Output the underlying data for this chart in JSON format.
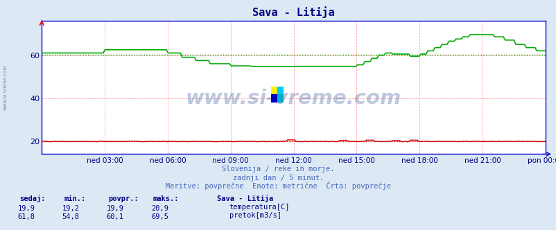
{
  "title": "Sava - Litija",
  "title_color": "#000080",
  "bg_color": "#dce9f5",
  "plot_bg_color": "#ffffff",
  "grid_color": "#ff9999",
  "watermark": "www.si-vreme.com",
  "watermark_color": "#1a3a8a",
  "left_label": "www.si-vreme.com",
  "tick_color": "#000080",
  "spine_color": "#0000cc",
  "xticklabels": [
    "ned 03:00",
    "ned 06:00",
    "ned 09:00",
    "ned 12:00",
    "ned 15:00",
    "ned 18:00",
    "ned 21:00",
    "pon 00:00"
  ],
  "yticks": [
    20,
    40,
    60
  ],
  "ylim": [
    14,
    76
  ],
  "temp_color": "#cc0000",
  "flow_color": "#00aa00",
  "subtitle1": "Slovenija / reke in morje.",
  "subtitle2": "zadnji dan / 5 minut.",
  "subtitle3": "Meritve: povprečne  Enote: metrične  Črta: povprečje",
  "subtitle_color": "#4466bb",
  "legend_title": "Sava - Litija",
  "legend_title_color": "#000080",
  "legend_items": [
    {
      "label": "temperatura[C]",
      "color": "#cc0000"
    },
    {
      "label": "pretok[m3/s]",
      "color": "#00aa00"
    }
  ],
  "stat_headers": [
    "sedaj:",
    "min.:",
    "povpr.:",
    "maks.:"
  ],
  "stat_rows": [
    [
      "19,9",
      "19,2",
      "19,9",
      "20,9"
    ],
    [
      "61,8",
      "54,8",
      "60,1",
      "69,5"
    ]
  ],
  "stat_color": "#000080",
  "temp_avg": 19.9,
  "flow_avg": 60.1,
  "icon_colors": [
    "#ffee00",
    "#00ccff",
    "#0000bb",
    "#00aacc"
  ]
}
